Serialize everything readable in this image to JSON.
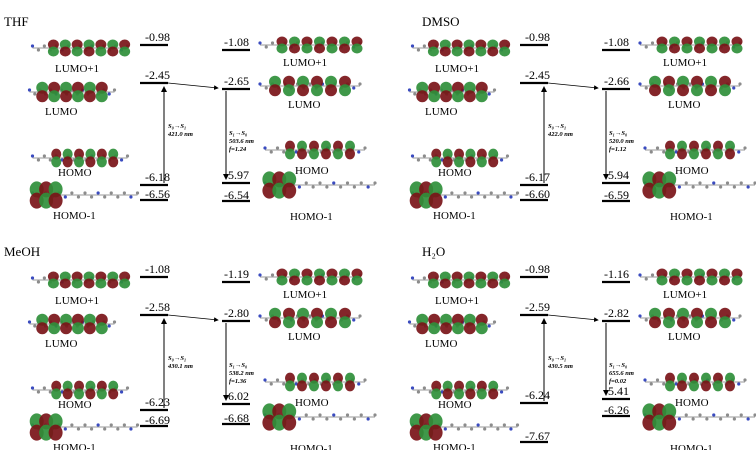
{
  "panels": [
    {
      "solvent": "THF",
      "left": {
        "lumo1": "-0.98",
        "lumo": "-2.45",
        "homo": "-6.18",
        "homo1": "-6.56"
      },
      "right": {
        "lumo1": "-1.08",
        "lumo": "-2.65",
        "homo": "-5.97",
        "homo1": "-6.54"
      },
      "absorption": [
        "S₀→S₁",
        "421.0 nm"
      ],
      "emission": [
        "S₁→S₀",
        "503.6 nm",
        "f=1.24"
      ],
      "labels_left": [
        "LUMO+1",
        "LUMO",
        "HOMO",
        "HOMO-1"
      ],
      "labels_right": [
        "LUMO+1",
        "LUMO",
        "HOMO",
        "HOMO-1"
      ]
    },
    {
      "solvent": "DMSO",
      "left": {
        "lumo1": "-0.98",
        "lumo": "-2.45",
        "homo": "-6.17",
        "homo1": "-6.60"
      },
      "right": {
        "lumo1": "-1.08",
        "lumo": "-2.66",
        "homo": "-5.94",
        "homo1": "-6.59"
      },
      "absorption": [
        "S₀→S₁",
        "422.0 nm"
      ],
      "emission": [
        "S₁→S₀",
        "520.0 nm",
        "f=1.12"
      ],
      "labels_left": [
        "LUMO+1",
        "LUMO",
        "HOMO",
        "HOMO-1"
      ],
      "labels_right": [
        "LUMO+1",
        "LUMO",
        "HOMO",
        "HOMO-1"
      ]
    },
    {
      "solvent": "MeOH",
      "left": {
        "lumo1": "-1.08",
        "lumo": "-2.58",
        "homo": "-6.23",
        "homo1": "-6.69"
      },
      "right": {
        "lumo1": "-1.19",
        "lumo": "-2.80",
        "homo": "-6.02",
        "homo1": "-6.68"
      },
      "absorption": [
        "S₀→S₁",
        "430.1 nm"
      ],
      "emission": [
        "S₁→S₀",
        "538.2 nm",
        "f=1.36"
      ],
      "labels_left": [
        "LUMO+1",
        "LUMO",
        "HOMO",
        "HOMO-1"
      ],
      "labels_right": [
        "LUMO+1",
        "LUMO",
        "HOMO",
        "HOMO-1"
      ]
    },
    {
      "solvent": "H₂O",
      "left": {
        "lumo1": "-0.98",
        "lumo": "-2.59",
        "homo": "-6.24",
        "homo1": "-7.67"
      },
      "right": {
        "lumo1": "-1.16",
        "lumo": "-2.82",
        "homo": "-5.41",
        "homo1": "-6.26"
      },
      "absorption": [
        "S₀→S₁",
        "430.5 nm"
      ],
      "emission": [
        "S₁→S₀",
        "655.6 nm",
        "f=0.02"
      ],
      "labels_left": [
        "LUMO+1",
        "LUMO",
        "HOMO",
        "HOMO-1"
      ],
      "labels_right": [
        "LUMO+1",
        "LUMO",
        "HOMO",
        "HOMO-1"
      ]
    }
  ],
  "colors": {
    "lobe_pos": "#2f8f3a",
    "lobe_neg": "#7a1418",
    "line": "#000000"
  }
}
